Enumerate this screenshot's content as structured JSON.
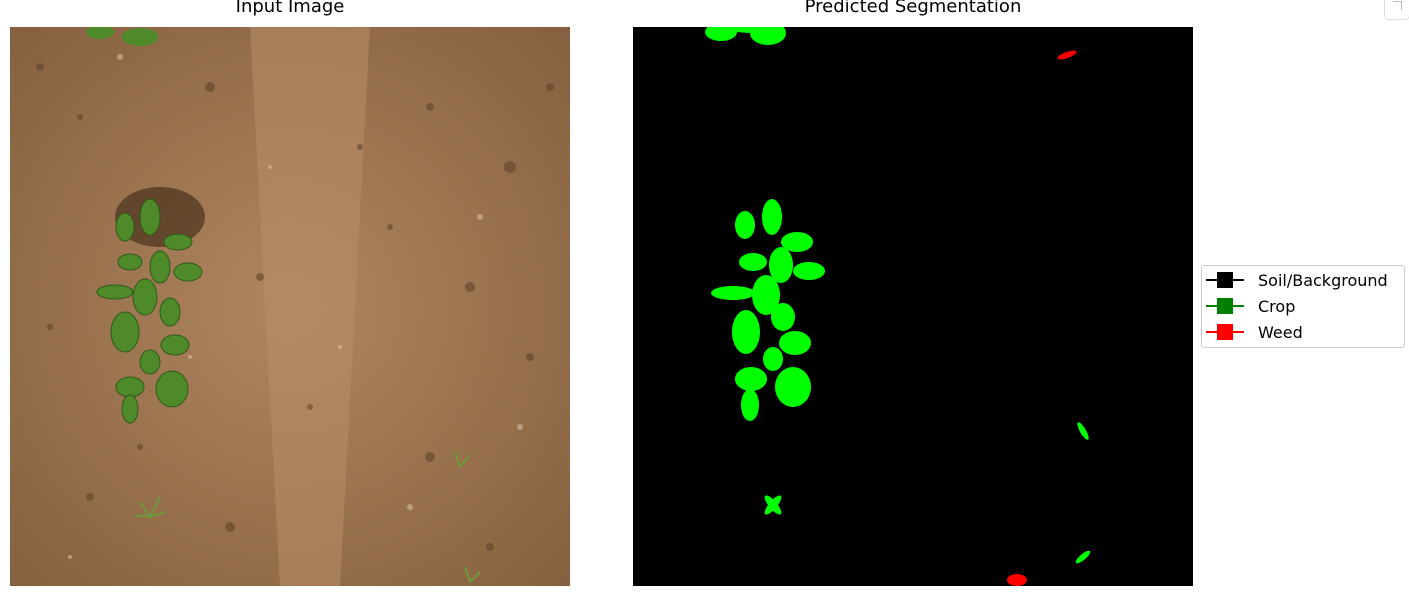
{
  "titles": {
    "left": "Input Image",
    "right": "Predicted Segmentation"
  },
  "legend": {
    "items": [
      {
        "label": "Soil/Background",
        "color": "#000000"
      },
      {
        "label": "Crop",
        "color": "#008000"
      },
      {
        "label": "Weed",
        "color": "#ff0000"
      }
    ]
  },
  "colors": {
    "soil": "#9b7452",
    "background": "#000000",
    "crop_mask": "#00ff00",
    "weed_mask": "#ff0000",
    "leaf": "#4f8a2a"
  }
}
